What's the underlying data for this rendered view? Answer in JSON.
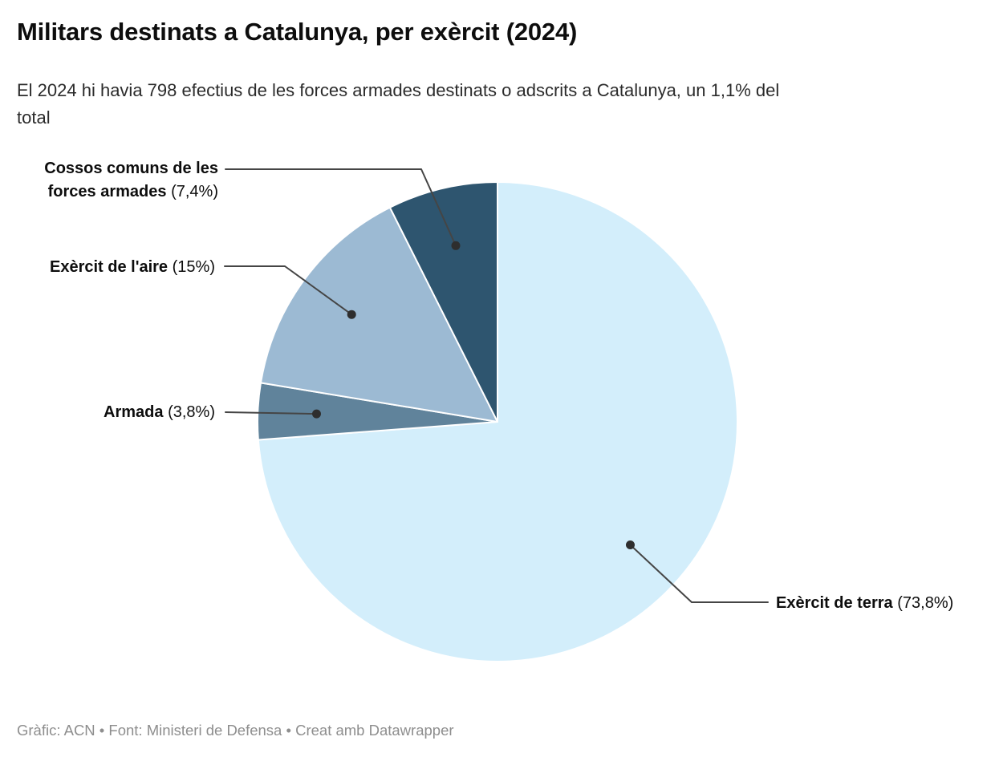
{
  "title": "Militars destinats a Catalunya, per exèrcit (2024)",
  "subtitle": {
    "full": "El 2024 hi havia 798 efectius de les forces armades destinats o adscrits a Catalunya, un 1,1% del total",
    "line1": "El 2024 hi havia 798 efectius de les forces armades destinats o adscrits a Catalunya, un 1,1% del",
    "line2": "total"
  },
  "footer": "Gràfic: ACN • Font: Ministeri de Defensa • Creat amb Datawrapper",
  "chart_data": {
    "type": "pie",
    "title": "Militars destinats a Catalunya, per exèrcit (2024)",
    "unit": "%",
    "start_angle_deg": 0,
    "direction": "clockwise",
    "label_style": "callout-with-leader-lines",
    "slices": [
      {
        "label": "Exèrcit de terra",
        "value": 73.8,
        "display": "(73,8%)",
        "color": "#d3eefb"
      },
      {
        "label": "Armada",
        "value": 3.8,
        "display": "(3,8%)",
        "color": "#60839b"
      },
      {
        "label": "Exèrcit de l'aire",
        "value": 15,
        "display": "(15%)",
        "color": "#9cbad3"
      },
      {
        "label": "Cossos comuns de les forces armades",
        "value": 7.4,
        "display": "(7,4%)",
        "color": "#2e556f"
      }
    ],
    "leader_line_color": "#454545",
    "leader_dot_color": "#2e2e2e",
    "slice_separator_color": "#ffffff"
  }
}
